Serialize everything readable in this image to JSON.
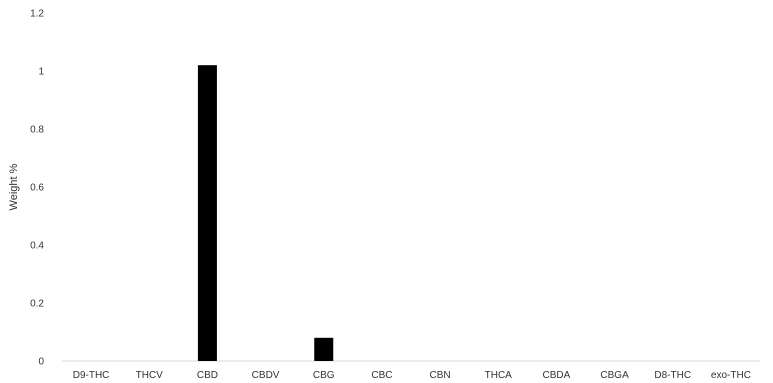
{
  "chart_data": {
    "type": "bar",
    "title": "",
    "xlabel": "",
    "ylabel": "Weight %",
    "ylim": [
      0,
      1.2
    ],
    "yticks": [
      "0",
      "0.2",
      "0.4",
      "0.6",
      "0.8",
      "1",
      "1.2"
    ],
    "grid": false,
    "legend": "none",
    "bar_color": "#000000",
    "categories": [
      "D9-THC",
      "THCV",
      "CBD",
      "CBDV",
      "CBG",
      "CBC",
      "CBN",
      "THCA",
      "CBDA",
      "CBGA",
      "D8-THC",
      "exo-THC"
    ],
    "values": [
      0,
      0,
      1.02,
      0,
      0.08,
      0,
      0,
      0,
      0,
      0,
      0,
      0
    ]
  }
}
